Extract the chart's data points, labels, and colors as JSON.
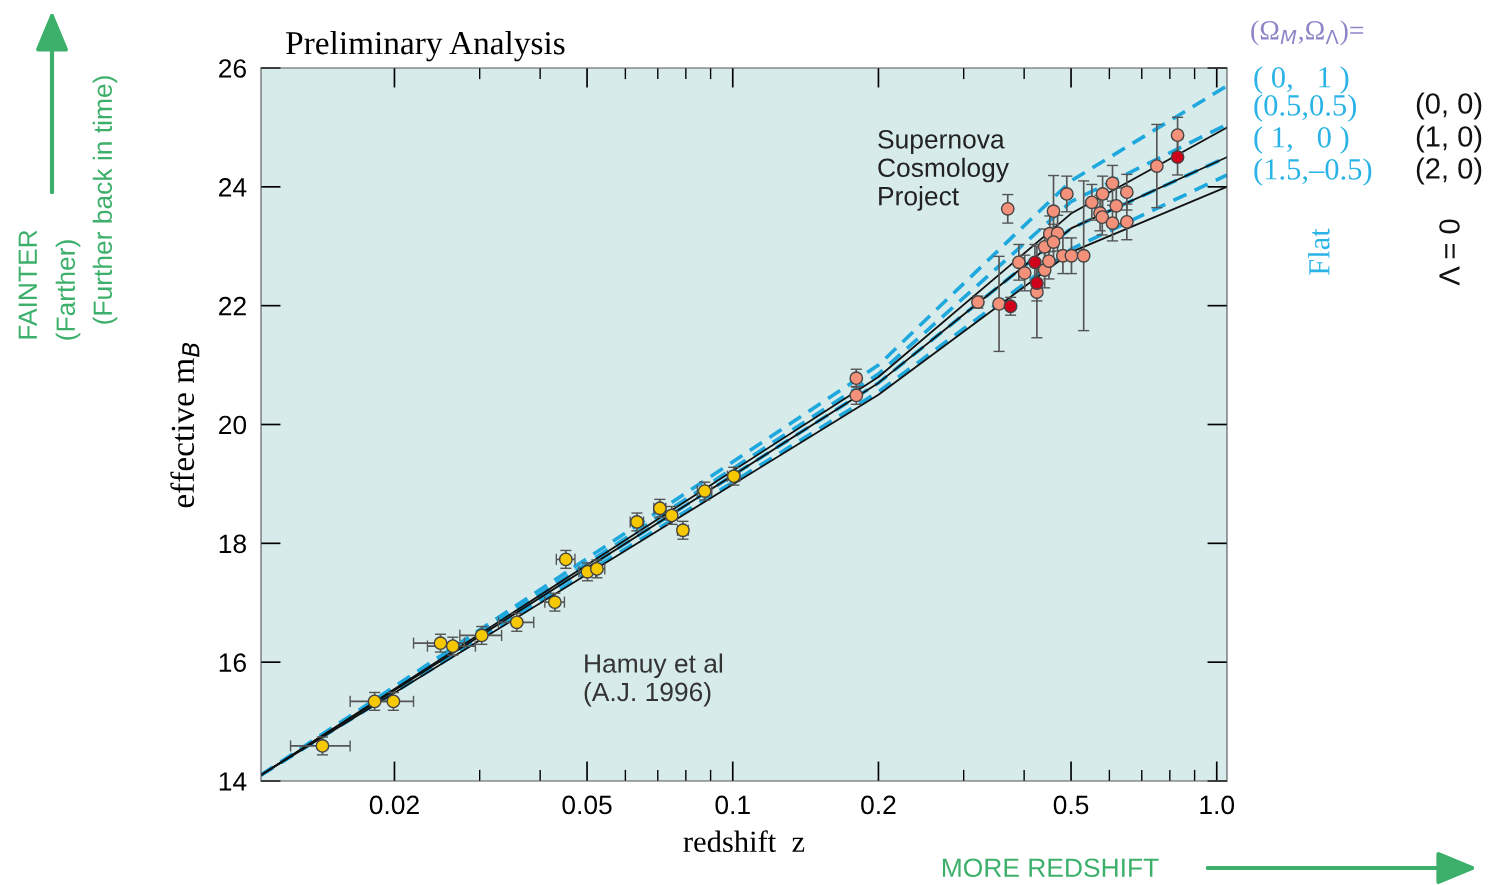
{
  "chart_data": {
    "type": "scatter",
    "title": "Preliminary Analysis",
    "xlabel": "redshift  z",
    "ylabel": "effective m$_{B}$",
    "log": "x",
    "xlim": [
      0.0106,
      1.05
    ],
    "ylim": [
      14,
      26
    ],
    "xticks": [
      0.02,
      0.05,
      0.1,
      0.2,
      0.5,
      {
        "value": 1.0,
        "label": "1.0"
      }
    ],
    "yticks": [
      14,
      16,
      18,
      20,
      22,
      24,
      26
    ],
    "grid": false,
    "legend": false,
    "series": [
      {
        "type": "line",
        "line_style": "dashed",
        "color": "#1ea8de",
        "x": [
          0.0106,
          0.2,
          0.5,
          1.05
        ],
        "values": [
          14.1,
          21.0,
          24.1,
          25.7
        ]
      },
      {
        "type": "line",
        "line_style": "dashed",
        "color": "#1ea8de",
        "x": [
          0.0106,
          0.2,
          0.5,
          1.05
        ],
        "values": [
          14.1,
          20.85,
          23.75,
          25.05
        ]
      },
      {
        "type": "line",
        "line_style": "dashed",
        "color": "#1ea8de",
        "x": [
          0.0106,
          0.2,
          0.5,
          1.05
        ],
        "values": [
          14.1,
          20.7,
          23.3,
          24.5
        ]
      },
      {
        "type": "line",
        "line_style": "dashed",
        "color": "#1ea8de",
        "x": [
          0.0106,
          0.2,
          0.5,
          1.05
        ],
        "values": [
          14.1,
          20.55,
          22.95,
          24.2
        ]
      },
      {
        "type": "line",
        "line_style": "solid",
        "color": "#111111",
        "x": [
          0.0106,
          0.2,
          0.5,
          1.05
        ],
        "values": [
          14.1,
          20.8,
          23.55,
          25.0
        ]
      },
      {
        "type": "line",
        "line_style": "solid",
        "color": "#111111",
        "x": [
          0.0106,
          0.2,
          0.5,
          1.05
        ],
        "values": [
          14.1,
          20.7,
          23.3,
          24.5
        ]
      },
      {
        "type": "line",
        "line_style": "solid",
        "color": "#111111",
        "x": [
          0.0106,
          0.2,
          0.5,
          1.05
        ],
        "values": [
          14.1,
          20.5,
          22.9,
          24.0
        ]
      },
      {
        "marker": "circle",
        "color": "#f5c800",
        "x": [
          0.0142,
          0.0182,
          0.0199,
          0.0249,
          0.0264,
          0.0303,
          0.0358,
          0.0429,
          0.0452,
          0.0501,
          0.0524,
          0.0634,
          0.0707,
          0.0748,
          0.0789,
          0.0875,
          0.1005
        ],
        "values": [
          14.59,
          15.34,
          15.34,
          16.32,
          16.27,
          16.45,
          16.67,
          17.01,
          17.73,
          17.52,
          17.57,
          18.36,
          18.59,
          18.47,
          18.22,
          18.88,
          19.13
        ],
        "errors": [
          0.15,
          0.15,
          0.15,
          0.15,
          0.15,
          0.15,
          0.15,
          0.15,
          0.15,
          0.15,
          0.15,
          0.15,
          0.15,
          0.15,
          0.15,
          0.15,
          0.15
        ],
        "xerrors": [
          0.002,
          0.002,
          0.002,
          0.003,
          0.003,
          0.003,
          0.003,
          0.002,
          0.002,
          0.002,
          0.002,
          0.002,
          0.002,
          0.002,
          0.002,
          0.003,
          0.003
        ]
      },
      {
        "marker": "circle",
        "color": "#f4917a",
        "x": [
          0.18,
          0.18,
          0.37,
          0.321,
          0.355,
          0.425,
          0.39,
          0.401,
          0.441,
          0.45,
          0.441,
          0.452,
          0.469,
          0.46,
          0.46,
          0.49,
          0.481,
          0.501,
          0.531,
          0.552,
          0.581,
          0.609,
          0.652,
          0.62,
          0.574,
          0.58,
          0.609,
          0.652,
          0.752,
          0.83
        ],
        "values": [
          20.78,
          20.49,
          23.63,
          22.06,
          22.03,
          22.23,
          22.73,
          22.55,
          22.6,
          22.75,
          22.99,
          23.21,
          23.22,
          23.07,
          23.59,
          23.88,
          22.84,
          22.84,
          22.84,
          23.74,
          23.88,
          24.06,
          23.91,
          23.68,
          23.56,
          23.49,
          23.39,
          23.41,
          24.35,
          24.87
        ],
        "errors": [
          0.15,
          0.15,
          0.24,
          0.1,
          0.8,
          0.77,
          0.3,
          0.3,
          0.3,
          0.3,
          0.3,
          0.3,
          0.3,
          0.3,
          0.6,
          0.3,
          0.3,
          0.3,
          1.26,
          0.3,
          0.3,
          0.3,
          0.3,
          0.3,
          0.3,
          0.3,
          0.3,
          0.3,
          0.7,
          0.3
        ]
      },
      {
        "marker": "circle",
        "color": "#d0021b",
        "x": [
          0.375,
          0.421,
          0.425,
          0.83
        ],
        "values": [
          21.99,
          22.73,
          22.38,
          24.5
        ],
        "errors": [
          0.15,
          0.3,
          0.3,
          0.3
        ]
      }
    ],
    "annotations": [
      "Supernova\nCosmology\nProject",
      "Hamuy et al\n(A.J. 1996)",
      "(Ω$_{M}$,Ω$_{Λ}$)=",
      "( 0,   1 )",
      "(0.5,0.5)",
      "( 1,   0 )",
      "(1.5,–0.5)",
      "(0, 0)",
      "(1, 0)",
      "(2, 0)",
      "Flat",
      "Λ = 0",
      "FAINTER",
      "(Farther)",
      "(Further back in time)",
      "MORE REDSHIFT"
    ]
  }
}
